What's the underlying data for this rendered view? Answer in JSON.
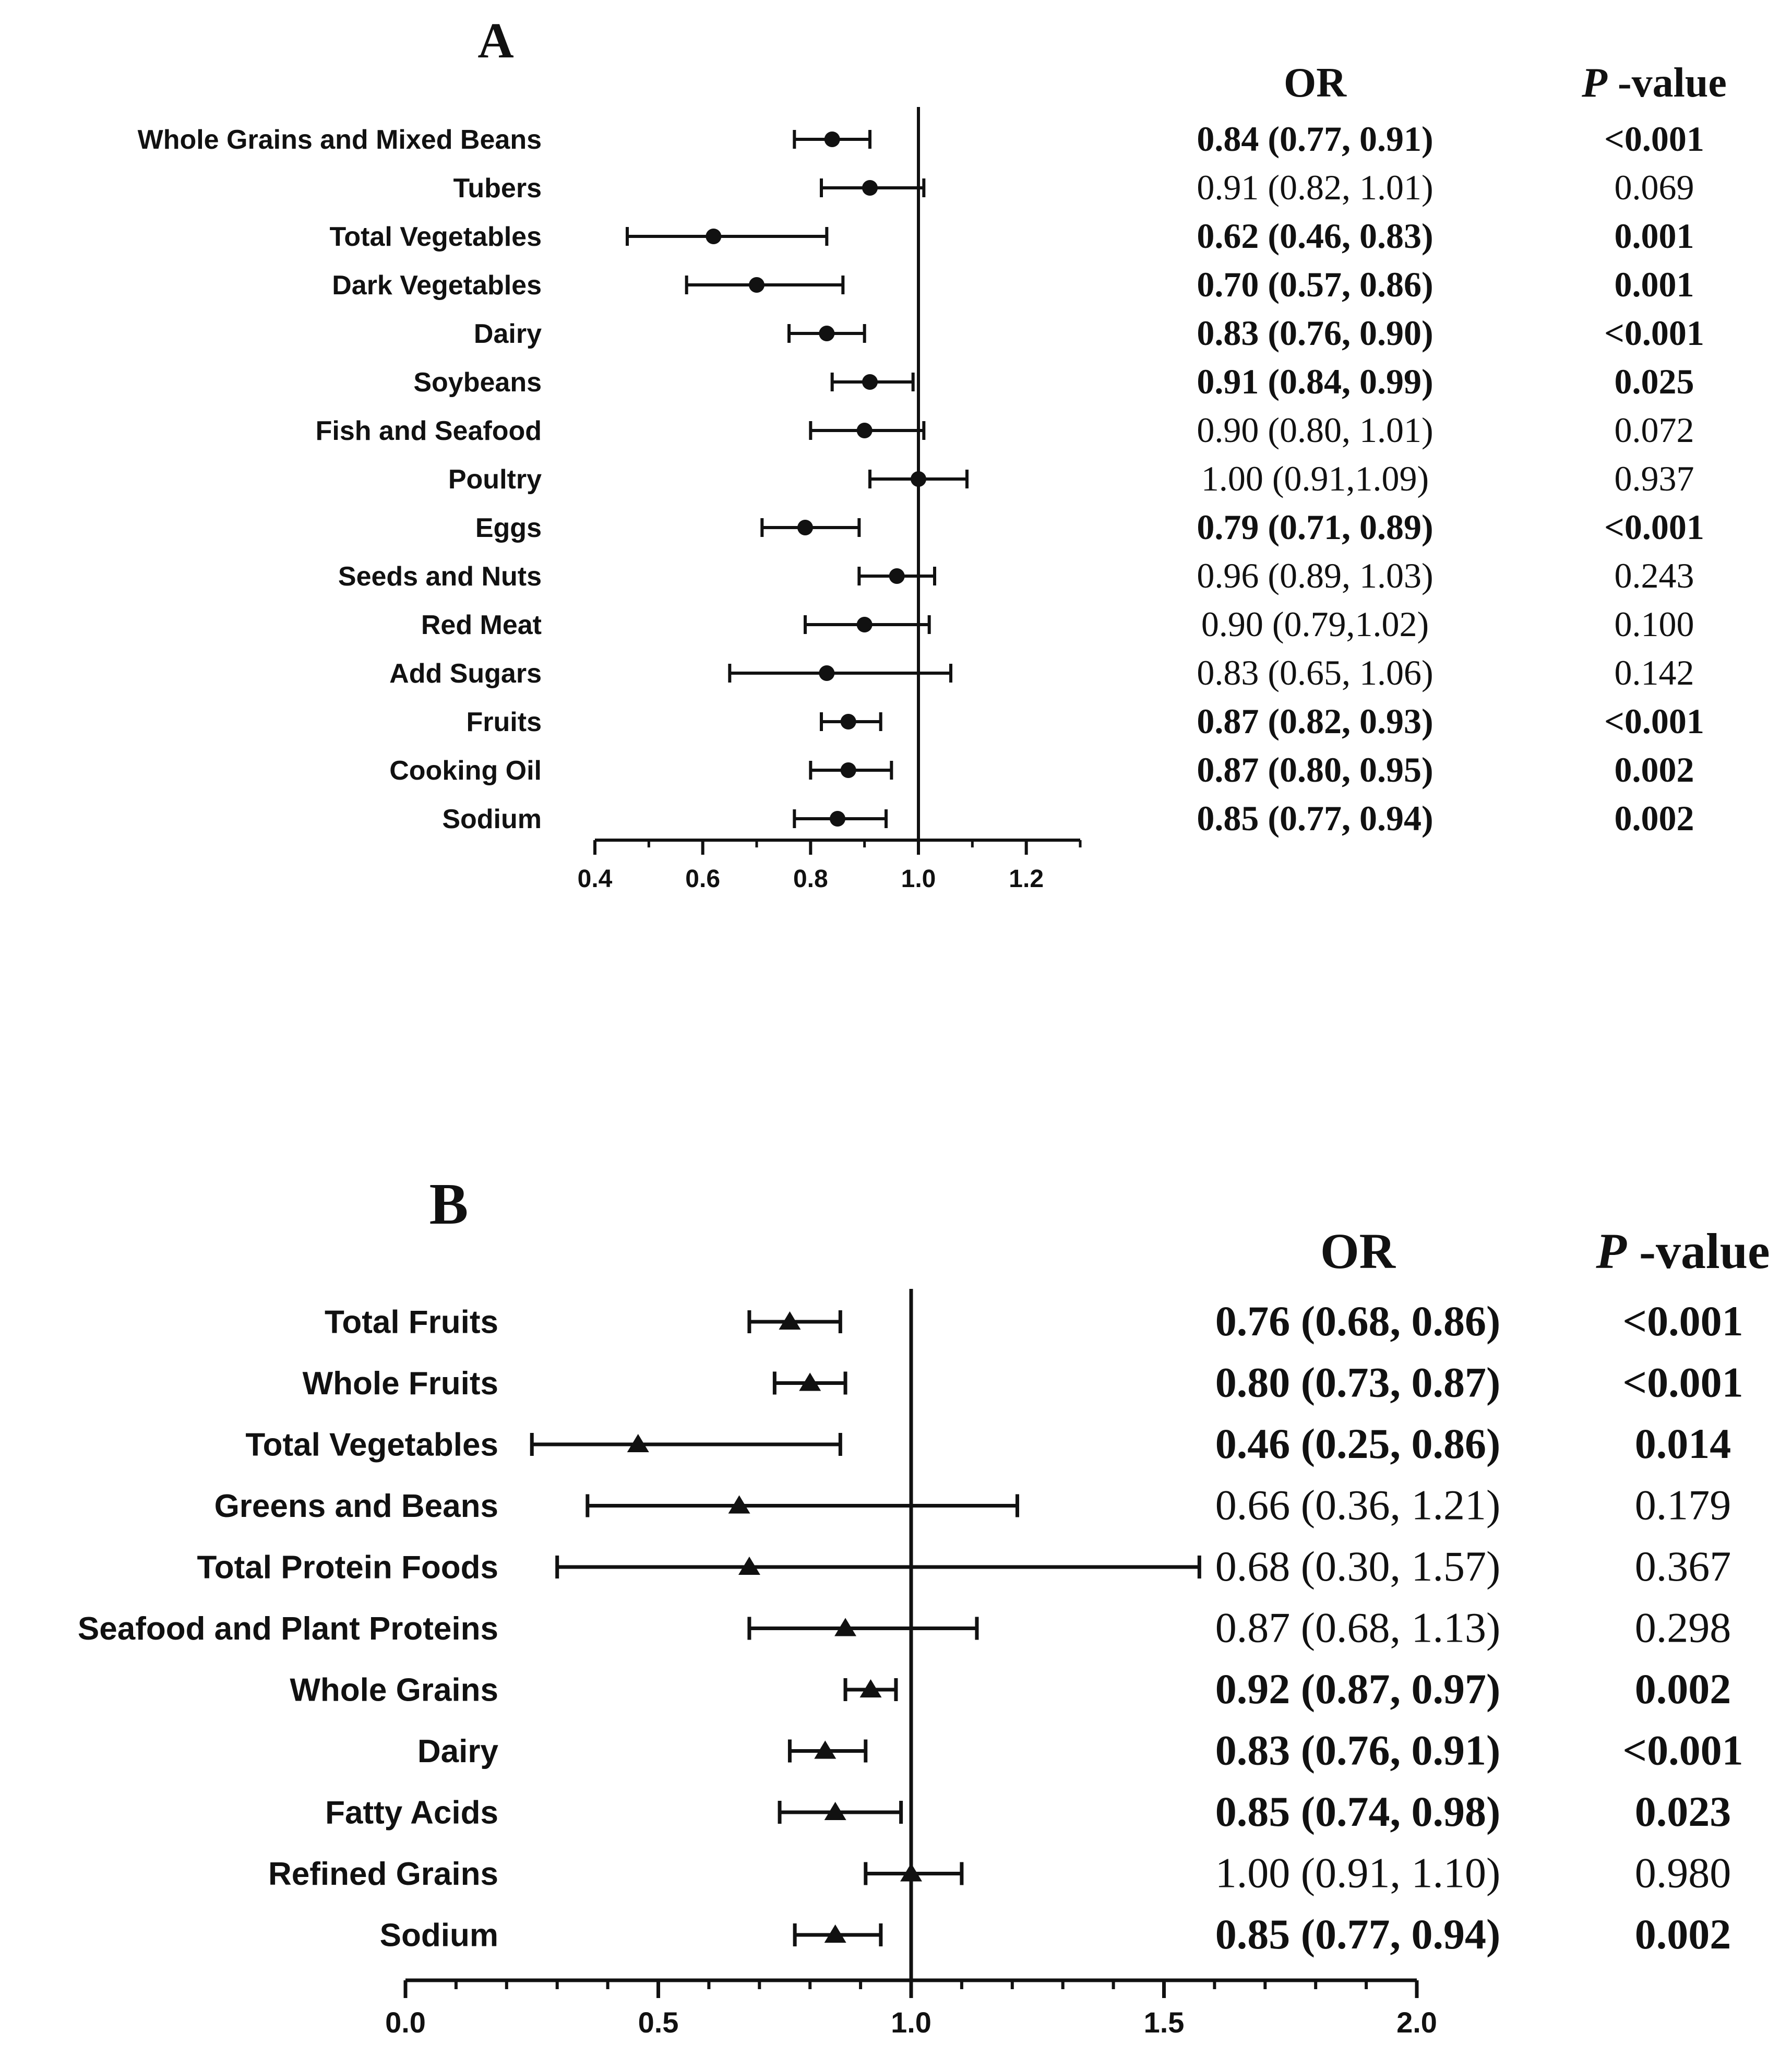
{
  "chart_data": [
    {
      "type": "forest",
      "panel": "A",
      "title": "A",
      "col_or_header": "OR",
      "col_p_header_italic": "P",
      "col_p_header_rest": "-value",
      "xlim": [
        0.4,
        1.3
      ],
      "xticks": [
        "0.4",
        "0.6",
        "0.8",
        "1.0",
        "1.2"
      ],
      "xtick_values": [
        0.4,
        0.6,
        0.8,
        1.0,
        1.2
      ],
      "reference_line": 1.0,
      "marker": "circle",
      "color": "#111111",
      "rows": [
        {
          "label": "Whole Grains and Mixed Beans",
          "or": 0.84,
          "lo": 0.77,
          "hi": 0.91,
          "or_text": "0.84 (0.77, 0.91)",
          "p": "<0.001",
          "bold": true
        },
        {
          "label": "Tubers",
          "or": 0.91,
          "lo": 0.82,
          "hi": 1.01,
          "or_text": "0.91 (0.82, 1.01)",
          "p": "0.069",
          "bold": false
        },
        {
          "label": "Total Vegetables",
          "or": 0.62,
          "lo": 0.46,
          "hi": 0.83,
          "or_text": "0.62 (0.46, 0.83)",
          "p": "0.001",
          "bold": true
        },
        {
          "label": "Dark Vegetables",
          "or": 0.7,
          "lo": 0.57,
          "hi": 0.86,
          "or_text": "0.70 (0.57, 0.86)",
          "p": "0.001",
          "bold": true
        },
        {
          "label": "Dairy",
          "or": 0.83,
          "lo": 0.76,
          "hi": 0.9,
          "or_text": "0.83 (0.76, 0.90)",
          "p": "<0.001",
          "bold": true
        },
        {
          "label": "Soybeans",
          "or": 0.91,
          "lo": 0.84,
          "hi": 0.99,
          "or_text": "0.91 (0.84, 0.99)",
          "p": "0.025",
          "bold": true
        },
        {
          "label": "Fish and Seafood",
          "or": 0.9,
          "lo": 0.8,
          "hi": 1.01,
          "or_text": "0.90 (0.80, 1.01)",
          "p": "0.072",
          "bold": false
        },
        {
          "label": "Poultry",
          "or": 1.0,
          "lo": 0.91,
          "hi": 1.09,
          "or_text": "1.00 (0.91,1.09)",
          "p": "0.937",
          "bold": false
        },
        {
          "label": "Eggs",
          "or": 0.79,
          "lo": 0.71,
          "hi": 0.89,
          "or_text": "0.79 (0.71, 0.89)",
          "p": "<0.001",
          "bold": true
        },
        {
          "label": "Seeds and Nuts",
          "or": 0.96,
          "lo": 0.89,
          "hi": 1.03,
          "or_text": "0.96 (0.89, 1.03)",
          "p": "0.243",
          "bold": false
        },
        {
          "label": "Red Meat",
          "or": 0.9,
          "lo": 0.79,
          "hi": 1.02,
          "or_text": "0.90 (0.79,1.02)",
          "p": "0.100",
          "bold": false
        },
        {
          "label": "Add Sugars",
          "or": 0.83,
          "lo": 0.65,
          "hi": 1.06,
          "or_text": "0.83 (0.65, 1.06)",
          "p": "0.142",
          "bold": false
        },
        {
          "label": "Fruits",
          "or": 0.87,
          "lo": 0.82,
          "hi": 0.93,
          "or_text": "0.87 (0.82, 0.93)",
          "p": "<0.001",
          "bold": true
        },
        {
          "label": "Cooking Oil",
          "or": 0.87,
          "lo": 0.8,
          "hi": 0.95,
          "or_text": "0.87 (0.80, 0.95)",
          "p": "0.002",
          "bold": true
        },
        {
          "label": "Sodium",
          "or": 0.85,
          "lo": 0.77,
          "hi": 0.94,
          "or_text": "0.85 (0.77, 0.94)",
          "p": "0.002",
          "bold": true
        }
      ]
    },
    {
      "type": "forest",
      "panel": "B",
      "title": "B",
      "col_or_header": "OR",
      "col_p_header_italic": "P",
      "col_p_header_rest": "-value",
      "xlim": [
        0.0,
        2.0
      ],
      "xticks": [
        "0.0",
        "0.5",
        "1.0",
        "1.5",
        "2.0"
      ],
      "xtick_values": [
        0.0,
        0.5,
        1.0,
        1.5,
        2.0
      ],
      "reference_line": 1.0,
      "marker": "triangle",
      "color": "#111111",
      "rows": [
        {
          "label": "Total Fruits",
          "or": 0.76,
          "lo": 0.68,
          "hi": 0.86,
          "or_text": "0.76 (0.68, 0.86)",
          "p": "<0.001",
          "bold": true
        },
        {
          "label": "Whole Fruits",
          "or": 0.8,
          "lo": 0.73,
          "hi": 0.87,
          "or_text": "0.80 (0.73, 0.87)",
          "p": "<0.001",
          "bold": true
        },
        {
          "label": "Total Vegetables",
          "or": 0.46,
          "lo": 0.25,
          "hi": 0.86,
          "or_text": "0.46 (0.25, 0.86)",
          "p": "0.014",
          "bold": true
        },
        {
          "label": "Greens and Beans",
          "or": 0.66,
          "lo": 0.36,
          "hi": 1.21,
          "or_text": "0.66 (0.36, 1.21)",
          "p": "0.179",
          "bold": false
        },
        {
          "label": "Total Protein Foods",
          "or": 0.68,
          "lo": 0.3,
          "hi": 1.57,
          "or_text": "0.68 (0.30, 1.57)",
          "p": "0.367",
          "bold": false
        },
        {
          "label": "Seafood and Plant Proteins",
          "or": 0.87,
          "lo": 0.68,
          "hi": 1.13,
          "or_text": "0.87 (0.68, 1.13)",
          "p": "0.298",
          "bold": false
        },
        {
          "label": "Whole Grains",
          "or": 0.92,
          "lo": 0.87,
          "hi": 0.97,
          "or_text": "0.92 (0.87, 0.97)",
          "p": "0.002",
          "bold": true
        },
        {
          "label": "Dairy",
          "or": 0.83,
          "lo": 0.76,
          "hi": 0.91,
          "or_text": "0.83 (0.76, 0.91)",
          "p": "<0.001",
          "bold": true
        },
        {
          "label": "Fatty Acids",
          "or": 0.85,
          "lo": 0.74,
          "hi": 0.98,
          "or_text": "0.85 (0.74, 0.98)",
          "p": "0.023",
          "bold": true
        },
        {
          "label": "Refined Grains",
          "or": 1.0,
          "lo": 0.91,
          "hi": 1.1,
          "or_text": "1.00 (0.91, 1.10)",
          "p": "0.980",
          "bold": false
        },
        {
          "label": "Sodium",
          "or": 0.85,
          "lo": 0.77,
          "hi": 0.94,
          "or_text": "0.85 (0.77, 0.94)",
          "p": "0.002",
          "bold": true
        }
      ]
    }
  ]
}
